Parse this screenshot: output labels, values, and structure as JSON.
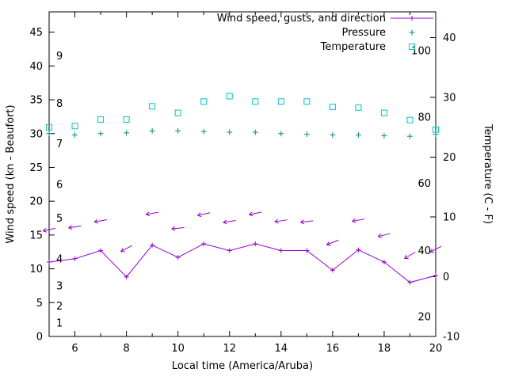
{
  "chart_data": {
    "type": "line",
    "title": "",
    "xlabel": "Local time (America/Aruba)",
    "ylabel_left": "Wind speed (kn - Beaufort)",
    "ylabel_right": "Temperature (C - F)",
    "grid": false,
    "legend_position": "top-right",
    "x_range": [
      5,
      20
    ],
    "x_ticks": [
      6,
      8,
      10,
      12,
      14,
      16,
      18,
      20
    ],
    "x_minor_step": 1,
    "left_axis": {
      "range": [
        0,
        48
      ],
      "ticks": [
        0,
        5,
        10,
        15,
        20,
        25,
        30,
        35,
        40,
        45
      ]
    },
    "right_axis": {
      "range": [
        -10,
        44.3
      ],
      "ticks": [
        -10,
        0,
        10,
        20,
        30,
        40
      ]
    },
    "beaufort_labels": [
      {
        "label": "1",
        "kn": 2.0
      },
      {
        "label": "2",
        "kn": 4.5
      },
      {
        "label": "3",
        "kn": 7.5
      },
      {
        "label": "4",
        "kn": 11.5
      },
      {
        "label": "5",
        "kn": 17.5
      },
      {
        "label": "6",
        "kn": 22.5
      },
      {
        "label": "7",
        "kn": 28.5
      },
      {
        "label": "8",
        "kn": 34.5
      },
      {
        "label": "9",
        "kn": 41.5
      }
    ],
    "fahrenheit_labels": [
      {
        "label": "20",
        "c": -6.7
      },
      {
        "label": "40",
        "c": 4.4
      },
      {
        "label": "60",
        "c": 15.6
      },
      {
        "label": "80",
        "c": 26.7
      },
      {
        "label": "100",
        "c": 37.8
      }
    ],
    "x": [
      5,
      6,
      7,
      8,
      9,
      10,
      11,
      12,
      13,
      14,
      15,
      16,
      17,
      18,
      19,
      20
    ],
    "series": [
      {
        "name": "Wind speed, gusts, and direction",
        "color": "#9400d3",
        "axis": "left",
        "marker": "plus-line",
        "values": [
          11.0,
          11.5,
          12.7,
          8.8,
          13.5,
          11.7,
          13.7,
          12.7,
          13.7,
          12.7,
          12.7,
          9.8,
          12.8,
          11.0,
          8.0,
          9.0
        ],
        "gusts": [
          15.8,
          16.2,
          17.1,
          13.0,
          18.2,
          16.0,
          18.1,
          17.0,
          18.2,
          17.1,
          17.0,
          13.9,
          17.2,
          15.0,
          12.0,
          12.9
        ],
        "gust_arrow_angles_deg": [
          168,
          172,
          170,
          152,
          170,
          174,
          168,
          171,
          168,
          171,
          173,
          158,
          170,
          166,
          150,
          153
        ]
      },
      {
        "name": "Pressure",
        "color": "#008b8b",
        "axis": "left",
        "marker": "plus",
        "values": [
          30.0,
          29.8,
          30.0,
          30.1,
          30.4,
          30.4,
          30.3,
          30.2,
          30.2,
          30.0,
          29.9,
          29.8,
          29.8,
          29.7,
          29.6,
          29.9
        ]
      },
      {
        "name": "Temperature",
        "color": "#00c3c3",
        "axis": "right",
        "marker": "square",
        "values": [
          25.0,
          25.2,
          26.3,
          26.3,
          28.5,
          27.4,
          29.3,
          30.2,
          29.3,
          29.3,
          29.3,
          28.4,
          28.3,
          27.4,
          26.2,
          24.6
        ]
      }
    ]
  }
}
